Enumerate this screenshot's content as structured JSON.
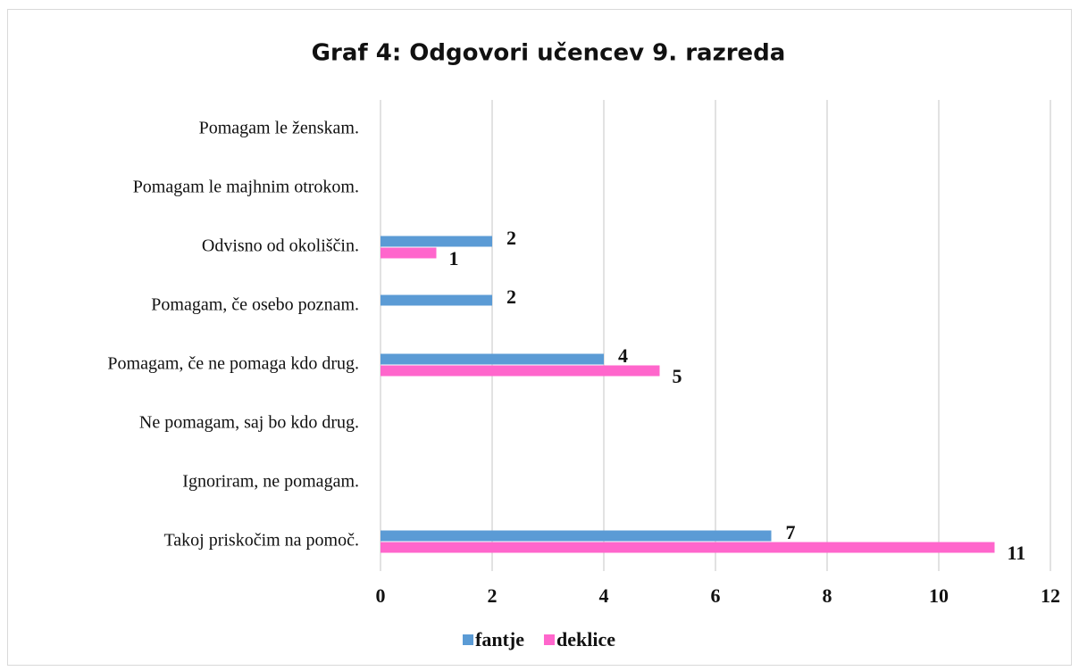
{
  "chart_data": {
    "type": "hbar",
    "title": "Graf 4: Odgovori učencev 9. razreda",
    "categories": [
      "Takoj priskočim na pomoč.",
      "Ignoriram, ne pomagam.",
      "Ne pomagam, saj bo kdo drug.",
      "Pomagam, če ne pomaga kdo drug.",
      "Pomagam, če osebo poznam.",
      "Odvisno od okoliščin.",
      "Pomagam le majhnim otrokom.",
      "Pomagam le ženskam."
    ],
    "series": [
      {
        "name": "fantje",
        "color": "#5b9bd5",
        "values": [
          7,
          null,
          null,
          4,
          2,
          2,
          null,
          null
        ]
      },
      {
        "name": "deklice",
        "color": "#ff66cc",
        "values": [
          11,
          null,
          null,
          5,
          null,
          1,
          null,
          null
        ]
      }
    ],
    "xlim": [
      0,
      12
    ],
    "xticks": [
      0,
      2,
      4,
      6,
      8,
      10,
      12
    ],
    "grid": true,
    "legend": "bottom"
  }
}
